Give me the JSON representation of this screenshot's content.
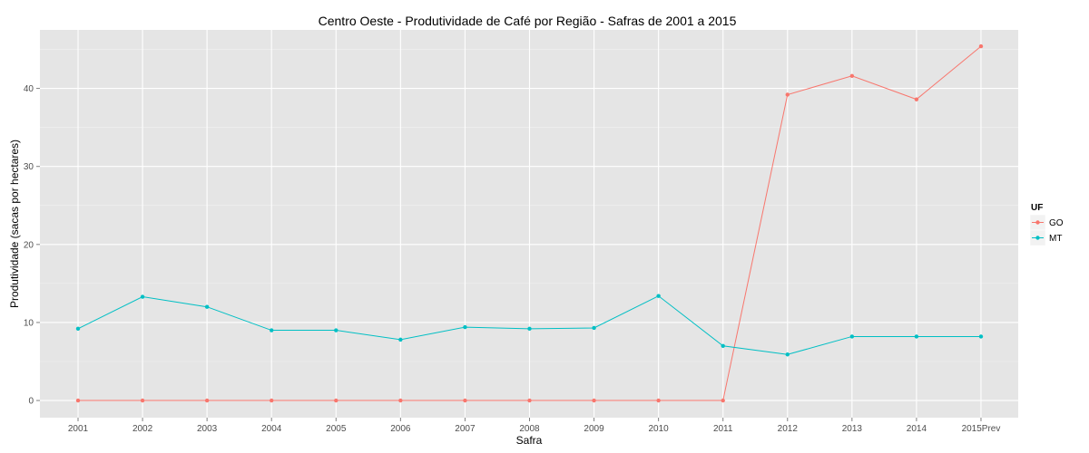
{
  "chart_data": {
    "type": "line",
    "title": "Centro Oeste  - Produtividade de Café por Região - Safras de 2001 a 2015",
    "xlabel": "Safra",
    "ylabel": "Produtividade (sacas por hectares)",
    "categories": [
      "2001",
      "2002",
      "2003",
      "2004",
      "2005",
      "2006",
      "2007",
      "2008",
      "2009",
      "2010",
      "2011",
      "2012",
      "2013",
      "2014",
      "2015Prev"
    ],
    "ylim": [
      -2.2,
      47.5
    ],
    "yticks": [
      0,
      10,
      20,
      30,
      40
    ],
    "grid": true,
    "legend_title": "UF",
    "legend_position": "right",
    "series": [
      {
        "name": "GO",
        "color": "#F8766D",
        "values": [
          0,
          0,
          0,
          0,
          0,
          0,
          0,
          0,
          0,
          0,
          0,
          39.2,
          41.6,
          38.6,
          45.4
        ]
      },
      {
        "name": "MT",
        "color": "#00BFC4",
        "values": [
          9.2,
          13.3,
          12.0,
          9.0,
          9.0,
          7.8,
          9.4,
          9.2,
          9.3,
          13.4,
          7.0,
          5.9,
          8.2,
          8.2,
          8.2
        ]
      }
    ]
  }
}
